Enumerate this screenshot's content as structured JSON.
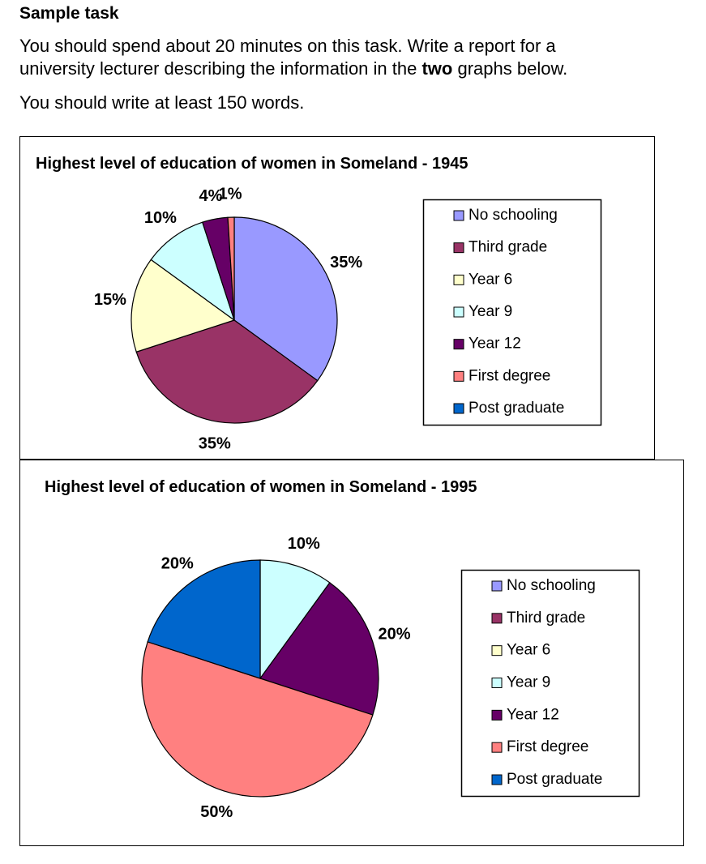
{
  "task": {
    "heading": "Sample task",
    "line1": "You should spend about 20 minutes on this task. Write a report for a",
    "line2_start": "university lecturer describing the information in the ",
    "line2_bold": "two",
    "line2_end": " graphs below.",
    "line3": "You should write at least 150 words."
  },
  "chart_data": [
    {
      "type": "pie",
      "title": "Highest level of education of women in Someland - 1945",
      "categories": [
        "No schooling",
        "Third grade",
        "Year 6",
        "Year 9",
        "Year 12",
        "First degree",
        "Post graduate"
      ],
      "values": [
        35,
        35,
        15,
        10,
        4,
        1,
        0
      ],
      "value_labels": [
        "35%",
        "35%",
        "15%",
        "10%",
        "4%",
        "1%",
        null
      ],
      "colors": [
        "#9999ff",
        "#993366",
        "#ffffcc",
        "#ccffff",
        "#660066",
        "#ff8080",
        "#0066cc"
      ]
    },
    {
      "type": "pie",
      "title": "Highest level of education of women in Someland - 1995",
      "categories": [
        "No schooling",
        "Third grade",
        "Year 6",
        "Year 9",
        "Year 12",
        "First degree",
        "Post graduate"
      ],
      "values": [
        0,
        0,
        0,
        10,
        20,
        50,
        20
      ],
      "value_labels": [
        null,
        null,
        null,
        "10%",
        "20%",
        "50%",
        "20%"
      ],
      "colors": [
        "#9999ff",
        "#993366",
        "#ffffcc",
        "#ccffff",
        "#660066",
        "#ff8080",
        "#0066cc"
      ]
    }
  ]
}
